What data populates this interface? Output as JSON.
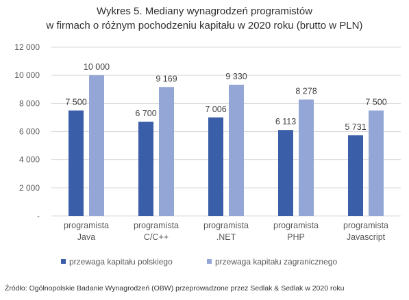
{
  "chart_data": {
    "type": "bar",
    "title": "Wykres 5. Mediany wynagrodzeń programistów",
    "subtitle": "w firmach o różnym pochodzeniu kapitału w 2020 roku (brutto w PLN)",
    "categories": [
      [
        "programista",
        "Java"
      ],
      [
        "programista",
        "C/C++"
      ],
      [
        "programista",
        ".NET"
      ],
      [
        "programista",
        "PHP"
      ],
      [
        "programista",
        "Javascript"
      ]
    ],
    "series": [
      {
        "name": "przewaga kapitału polskiego",
        "values": [
          7500,
          6700,
          7006,
          6113,
          5731
        ],
        "labels": [
          "7 500",
          "6 700",
          "7 006",
          "6 113",
          "5 731"
        ],
        "color": "#3a5ea8"
      },
      {
        "name": "przewaga kapitału zagranicznego",
        "values": [
          10000,
          9169,
          9330,
          8278,
          7500
        ],
        "labels": [
          "10 000",
          "9 169",
          "9 330",
          "8 278",
          "7 500"
        ],
        "color": "#93a6d6"
      }
    ],
    "yticks": [
      "-",
      "2 000",
      "4 000",
      "6 000",
      "8 000",
      "10 000",
      "12 000"
    ],
    "ylim": [
      0,
      12000
    ],
    "xlabel": "",
    "ylabel": "",
    "grid": true,
    "legend_position": "bottom-left"
  },
  "source": "Źródło: Ogólnopolskie Badanie Wynagrodzeń (OBW) przeprowadzone przez Sedlak & Sedlak w 2020 roku",
  "colors": {
    "grid": "#d9d9d9",
    "axis_text": "#595959",
    "title_text": "#2f2f2f"
  }
}
